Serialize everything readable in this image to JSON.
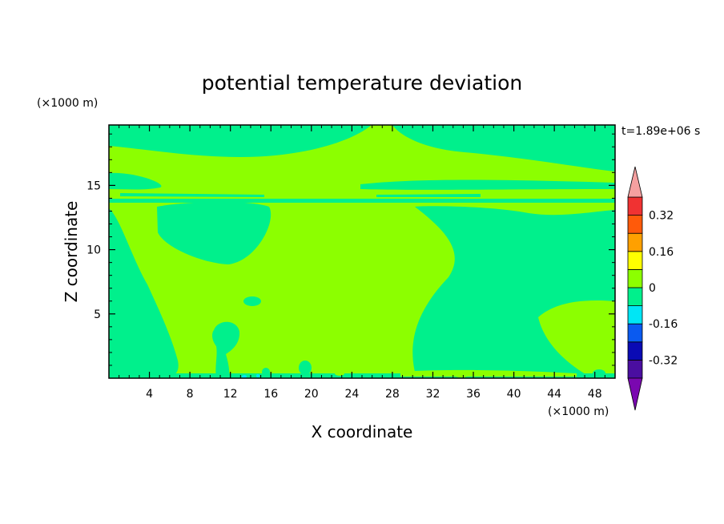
{
  "chart_data": {
    "type": "heatmap",
    "title": "potential temperature deviation",
    "xlabel": "X coordinate",
    "ylabel": "Z coordinate",
    "x_unit": "(×1000 m)",
    "y_unit": "(×1000 m)",
    "time_label": "t=1.89e+06 s",
    "xlim": [
      0,
      50
    ],
    "ylim": [
      0,
      19.7
    ],
    "x_ticks": [
      4,
      8,
      12,
      16,
      20,
      24,
      28,
      32,
      36,
      40,
      44,
      48
    ],
    "y_ticks": [
      5,
      10,
      15
    ],
    "colorbar": {
      "levels": [
        -0.4,
        -0.32,
        -0.24,
        -0.16,
        -0.08,
        0,
        0.08,
        0.16,
        0.24,
        0.32,
        0.4
      ],
      "colors": [
        "#4a0ea0",
        "#0a0ab4",
        "#0a5af0",
        "#00e6f5",
        "#00f08c",
        "#8cff00",
        "#ffff00",
        "#ffa000",
        "#ff5a0a",
        "#f03232"
      ],
      "under_color": "#7a08b0",
      "over_color": "#f5a0a0",
      "tick_labels": [
        "0.32",
        "0.16",
        "0",
        "-0.16",
        "-0.32"
      ]
    },
    "colors": {
      "positive_fill": "#8cff00",
      "negative_fill": "#00f08c",
      "weak_negative_fill": "#00e6f5"
    }
  }
}
